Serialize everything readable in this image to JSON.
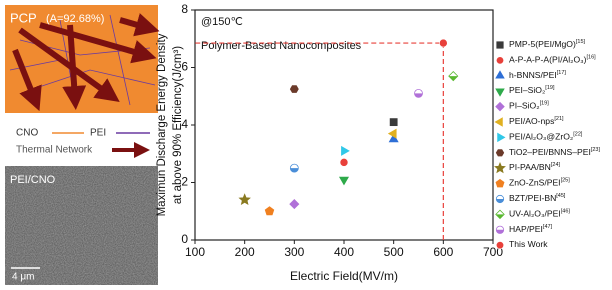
{
  "panel": {
    "title": "PCP",
    "subtitle": "(A=92.68%)",
    "legend": [
      "CNO",
      "PEI",
      "Thermal Network"
    ],
    "image_label": "PEI/CNO",
    "scale_bar": "4 μm"
  },
  "chart_data": {
    "type": "scatter",
    "annotations": [
      "@150℃",
      "Polymer-Based Nanocomposites"
    ],
    "x_label": "Electric Field(MV/m)",
    "y_label": [
      "Maximun Discharge Energy Density",
      "at above 90% Efficiency(J/cm³)"
    ],
    "xlim": [
      100,
      700
    ],
    "xticks": [
      100,
      200,
      300,
      400,
      500,
      600,
      700
    ],
    "ylim": [
      0,
      8
    ],
    "yticks": [
      0,
      2,
      4,
      6,
      8
    ],
    "series": [
      {
        "name": "PMP-5(PEI/MgO)",
        "ref": "[15]",
        "color": "#3a3a3a",
        "marker": "square",
        "x": [
          500
        ],
        "values": [
          4.1
        ]
      },
      {
        "name": "A-P-A-P-A(PI/Al₂O₃)",
        "ref": "[16]",
        "color": "#e8403a",
        "marker": "circle",
        "x": [
          400
        ],
        "values": [
          2.7
        ]
      },
      {
        "name": "h-BNNS/PEI",
        "ref": "[17]",
        "color": "#2e6fd6",
        "marker": "triangle-up",
        "x": [
          500
        ],
        "values": [
          3.5
        ]
      },
      {
        "name": "PEI–SiO₂",
        "ref": "[19]",
        "color": "#2eaa4a",
        "marker": "triangle-down",
        "x": [
          400
        ],
        "values": [
          2.1
        ]
      },
      {
        "name": "PI–SiO₂",
        "ref": "[19]",
        "color": "#b070d8",
        "marker": "diamond",
        "x": [
          300
        ],
        "values": [
          1.25
        ]
      },
      {
        "name": "PEI/AO-nps",
        "ref": "[21]",
        "color": "#e0b020",
        "marker": "triangle-left",
        "x": [
          500
        ],
        "values": [
          3.7
        ]
      },
      {
        "name": "PEI/Al₂O₃@ZrO₂",
        "ref": "[22]",
        "color": "#30c8e8",
        "marker": "triangle-right",
        "x": [
          400
        ],
        "values": [
          3.1
        ]
      },
      {
        "name": "TiO2–PEI/BNNS–PEI",
        "ref": "[23]",
        "color": "#6b3a2a",
        "marker": "hexagon",
        "x": [
          300
        ],
        "values": [
          5.25
        ]
      },
      {
        "name": "PI-PAA/BN",
        "ref": "[24]",
        "color": "#8a7a20",
        "marker": "star",
        "x": [
          200
        ],
        "values": [
          1.4
        ]
      },
      {
        "name": "ZnO-ZnS/PEI",
        "ref": "[25]",
        "color": "#f08020",
        "marker": "pentagon",
        "x": [
          250
        ],
        "values": [
          1.0
        ]
      },
      {
        "name": "BZT/PEI-BN",
        "ref": "[45]",
        "color": "#4a8ed8",
        "marker": "half-circle",
        "x": [
          300
        ],
        "values": [
          2.5
        ]
      },
      {
        "name": "UV-Al₂O₃/PEI",
        "ref": "[46]",
        "color": "#5ab830",
        "marker": "half-diamond",
        "x": [
          620
        ],
        "values": [
          5.7
        ]
      },
      {
        "name": "HAP/PEI",
        "ref": "[47]",
        "color": "#b070d8",
        "marker": "half-circle",
        "x": [
          550
        ],
        "values": [
          5.1
        ]
      },
      {
        "name": "This Work",
        "color": "#e8403a",
        "marker": "circle",
        "guides": true,
        "x": [
          600
        ],
        "values": [
          6.85
        ]
      }
    ]
  }
}
